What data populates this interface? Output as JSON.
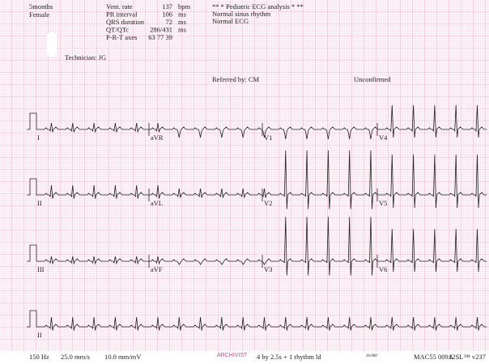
{
  "patient": {
    "age": "5months",
    "sex": "Female",
    "technician": "Technician: JG"
  },
  "measurements": [
    {
      "label": "Vent. rate",
      "value": "137",
      "unit": "bpm"
    },
    {
      "label": "PR interval",
      "value": "106",
      "unit": "ms"
    },
    {
      "label": "QRS duration",
      "value": "72",
      "unit": "ms"
    },
    {
      "label": "QT/QTc",
      "value": "286/431",
      "unit": "ms"
    },
    {
      "label": "P-R-T axes",
      "value": "63   77   39",
      "unit": ""
    }
  ],
  "interpretation": [
    "** * Pediatric ECG analysis * **",
    "Normal sinus rhythm",
    "Normal ECG"
  ],
  "referred_by": "Referred by: CM",
  "status": "Unconfirmed",
  "leads": [
    [
      "I",
      "aVR",
      "V1",
      "V4"
    ],
    [
      "II",
      "aVL",
      "V2",
      "V5"
    ],
    [
      "III",
      "aVF",
      "V3",
      "V6"
    ],
    [
      "II"
    ]
  ],
  "footer": {
    "filter": "150 Hz",
    "speed": "25.0 mm/s",
    "gain": "10.0 mm/mV",
    "archivist": "ARCHIVIST",
    "format": "4 by 2.5s + 1 rhythm ld",
    "code": "26.008",
    "device": "MAC55 009A",
    "software": "12SL™ v237"
  }
}
